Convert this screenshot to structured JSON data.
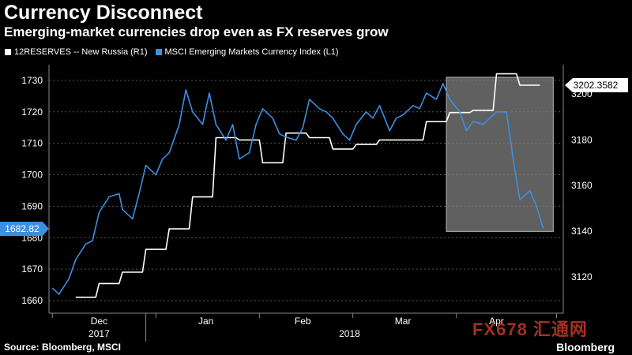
{
  "title": "Currency Disconnect",
  "subtitle": "Emerging-market currencies drop even as FX reserves grow",
  "source": "Source: Bloomberg, MSCI",
  "brand": "Bloomberg",
  "watermark": "FX678 汇通网",
  "colors": {
    "background": "#000000",
    "reserves": "#ffffff",
    "msci": "#3d8fe0",
    "highlight": "#808080"
  },
  "chart_data": {
    "type": "line",
    "legend": [
      "12RESERVES -- New Russia (R1)",
      "MSCI Emerging Markets Currency Index (L1)"
    ],
    "x_ticks": [
      "Dec",
      "Jan",
      "Feb",
      "Mar",
      "Apr"
    ],
    "x_year_labels": [
      "2017",
      "2018"
    ],
    "left_axis": {
      "ticks": [
        1660,
        1670,
        1680,
        1690,
        1700,
        1710,
        1720,
        1730
      ],
      "range": [
        1656,
        1735
      ]
    },
    "right_axis": {
      "ticks": [
        3120,
        3140,
        3160,
        3180
      ],
      "range": [
        3104,
        3213
      ]
    },
    "last_value_labels": {
      "msci": "1682.82",
      "reserves": "3202.3582",
      "reserves_partial": "3200"
    },
    "highlight_box": {
      "x_start": "2018-03-29",
      "x_end": "2018-04-30",
      "y_start_left": 1682,
      "y_end_left": 1731
    },
    "series": [
      {
        "name": "12RESERVES -- New Russia (R1)",
        "axis": "right",
        "color": "#ffffff",
        "x": [
          "2017-12-08",
          "2017-12-14",
          "2017-12-15",
          "2017-12-21",
          "2017-12-22",
          "2017-12-28",
          "2017-12-29",
          "2018-01-04",
          "2018-01-05",
          "2018-01-11",
          "2018-01-12",
          "2018-01-18",
          "2018-01-19",
          "2018-01-25",
          "2018-01-26",
          "2018-02-01",
          "2018-02-02",
          "2018-02-08",
          "2018-02-09",
          "2018-02-15",
          "2018-02-16",
          "2018-02-22",
          "2018-02-23",
          "2018-03-01",
          "2018-03-02",
          "2018-03-08",
          "2018-03-09",
          "2018-03-15",
          "2018-03-16",
          "2018-03-22",
          "2018-03-23",
          "2018-03-29",
          "2018-03-30",
          "2018-04-05",
          "2018-04-06",
          "2018-04-12",
          "2018-04-13",
          "2018-04-19",
          "2018-04-20",
          "2018-04-26"
        ],
        "values": [
          3111,
          3111,
          3117,
          3117,
          3122,
          3122,
          3132,
          3132,
          3141,
          3141,
          3155,
          3155,
          3181,
          3181,
          3180,
          3180,
          3170,
          3170,
          3183,
          3183,
          3181,
          3181,
          3176,
          3176,
          3178,
          3178,
          3180,
          3180,
          3180,
          3180,
          3188,
          3188,
          3192,
          3192,
          3193,
          3193,
          3209,
          3209,
          3204,
          3204
        ]
      },
      {
        "name": "MSCI Emerging Markets Currency Index (L1)",
        "axis": "left",
        "color": "#3d8fe0",
        "x": [
          "2017-12-01",
          "2017-12-03",
          "2017-12-06",
          "2017-12-08",
          "2017-12-11",
          "2017-12-13",
          "2017-12-15",
          "2017-12-18",
          "2017-12-21",
          "2017-12-22",
          "2017-12-25",
          "2017-12-27",
          "2017-12-29",
          "2018-01-01",
          "2018-01-03",
          "2018-01-05",
          "2018-01-08",
          "2018-01-10",
          "2018-01-12",
          "2018-01-15",
          "2018-01-17",
          "2018-01-19",
          "2018-01-22",
          "2018-01-24",
          "2018-01-26",
          "2018-01-29",
          "2018-01-31",
          "2018-02-02",
          "2018-02-05",
          "2018-02-07",
          "2018-02-09",
          "2018-02-12",
          "2018-02-14",
          "2018-02-16",
          "2018-02-19",
          "2018-02-21",
          "2018-02-23",
          "2018-02-26",
          "2018-02-28",
          "2018-03-02",
          "2018-03-05",
          "2018-03-07",
          "2018-03-09",
          "2018-03-12",
          "2018-03-14",
          "2018-03-16",
          "2018-03-19",
          "2018-03-21",
          "2018-03-23",
          "2018-03-26",
          "2018-03-28",
          "2018-03-30",
          "2018-04-02",
          "2018-04-04",
          "2018-04-06",
          "2018-04-09",
          "2018-04-11",
          "2018-04-13",
          "2018-04-16",
          "2018-04-18",
          "2018-04-20",
          "2018-04-23",
          "2018-04-25",
          "2018-04-27"
        ],
        "values": [
          1664,
          1662,
          1667,
          1673,
          1678,
          1679,
          1688,
          1693,
          1694,
          1689,
          1686,
          1694,
          1703,
          1700,
          1705,
          1707,
          1716,
          1727,
          1720,
          1716,
          1726,
          1716,
          1711,
          1716,
          1705,
          1707,
          1716,
          1721,
          1718,
          1713,
          1712,
          1711,
          1715,
          1724,
          1721,
          1720,
          1718,
          1713,
          1711,
          1716,
          1720,
          1718,
          1722,
          1714,
          1718,
          1719,
          1722,
          1721,
          1726,
          1724,
          1729,
          1724,
          1720,
          1714,
          1717,
          1716,
          1718,
          1720,
          1720,
          1705,
          1692,
          1695,
          1690,
          1683
        ]
      }
    ]
  }
}
